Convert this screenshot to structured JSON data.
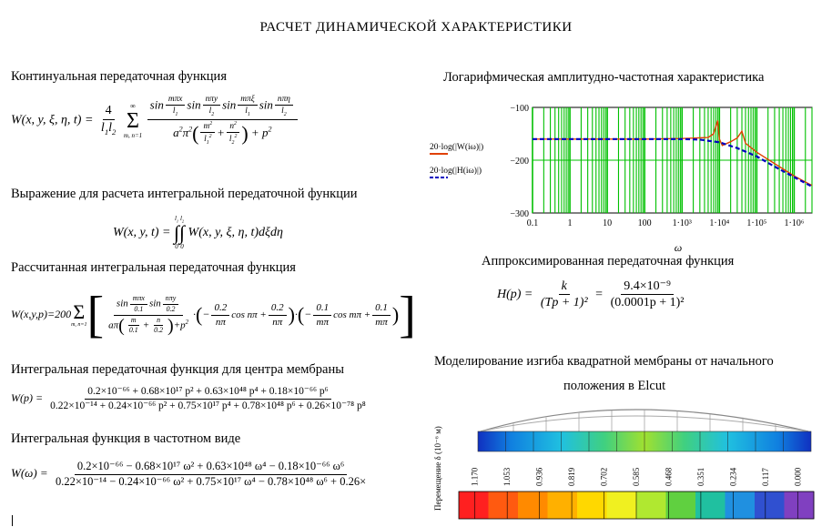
{
  "page": {
    "title": "РАСЧЕТ ДИНАМИЧЕСКОЙ ХАРАКТЕРИСТИКИ"
  },
  "sections": {
    "continual": "Континуальная передаточная функция",
    "integral_expr": "Выражение для расчета интегральной передаточной функции",
    "calculated": "Рассчитанная интегральная передаточная функция",
    "center": "Интегральная передаточная функция для центра мембраны",
    "frequency": "Интегральная функция в частотном виде",
    "lachx": "Логарифмическая амплитудно-частотная характеристика",
    "approx": "Аппроксимированная передаточная функция",
    "elcut_line1": "Моделирование изгиба квадратной мембраны от начального",
    "elcut_line2": "положения в Elcut"
  },
  "formulas": {
    "eq1_lhs": "W(x, y, ξ, η, t) =",
    "eq1_coef_num": "4",
    "eq1_coef_den": "l1l2",
    "eq2_lhs": "W(x, y, t) =",
    "eq2_rhs": "W(x, y, ξ, η, t)dξdη",
    "eq3_lhs": "W(x,y,p)=200",
    "eq3_factor1_num": "0.2",
    "eq3_factor1_den": "nπ",
    "eq3_factor2_num": "0.1",
    "eq3_factor2_den": "mπ",
    "eq4_lhs": "W(p) =",
    "eq4_num": "0.2×10⁻⁶⁶ + 0.68×10¹⁷ p² + 0.63×10⁴⁸ p⁴ + 0.18×10⁻⁶⁶ p⁶",
    "eq4_den": "0.22×10⁻¹⁴ + 0.24×10⁻⁶⁶ p² + 0.75×10¹⁷ p⁴ + 0.78×10⁴⁸ p⁶ + 0.26×10⁻⁷⁸ p⁸",
    "eq5_lhs": "W(ω) =",
    "eq5_num": "0.2×10⁻⁶⁶ − 0.68×10¹⁷ ω² + 0.63×10⁴⁸ ω⁴ − 0.18×10⁻⁶⁶ ω⁶",
    "eq5_den": "0.22×10⁻¹⁴ − 0.24×10⁻⁶⁶ ω² + 0.75×10¹⁷ ω⁴ − 0.78×10⁴⁸ ω⁶ + 0.26×",
    "approx_lhs": "H(p) =",
    "approx_num1": "k",
    "approx_den1": "(Tp + 1)²",
    "approx_num2": "9.4×10⁻⁹",
    "approx_den2": "(0.0001p + 1)²"
  },
  "chart_data": {
    "type": "line",
    "title": "Логарифмическая амплитудно-частотная характеристика",
    "xlabel": "ω",
    "xscale": "log",
    "xlim": [
      0.1,
      3000000
    ],
    "ylim": [
      -300,
      -100
    ],
    "x_ticks": [
      "0.1",
      "1",
      "10",
      "100",
      "1·10³",
      "1·10⁴",
      "1·10⁵",
      "1·10⁶"
    ],
    "y_ticks": [
      "−100",
      "−200",
      "−300"
    ],
    "grid": true,
    "series": [
      {
        "name": "20·log(|W(iω)|)",
        "color": "#e04000",
        "style": "solid",
        "points": [
          [
            0.1,
            -160
          ],
          [
            1,
            -160
          ],
          [
            10,
            -160
          ],
          [
            100,
            -160
          ],
          [
            1000,
            -159
          ],
          [
            5000,
            -157
          ],
          [
            7000,
            -150
          ],
          [
            9000,
            -125
          ],
          [
            10000,
            -160
          ],
          [
            12000,
            -172
          ],
          [
            20000,
            -165
          ],
          [
            30000,
            -158
          ],
          [
            40000,
            -145
          ],
          [
            50000,
            -168
          ],
          [
            100000,
            -185
          ],
          [
            1000000,
            -230
          ],
          [
            3000000,
            -248
          ]
        ]
      },
      {
        "name": "20·log(|H(iω)|)",
        "color": "#0000c0",
        "style": "dashed",
        "points": [
          [
            0.1,
            -160
          ],
          [
            1,
            -160
          ],
          [
            10,
            -160
          ],
          [
            100,
            -160
          ],
          [
            1000,
            -160
          ],
          [
            3000,
            -161
          ],
          [
            10000,
            -166
          ],
          [
            30000,
            -177
          ],
          [
            100000,
            -193
          ],
          [
            300000,
            -212
          ],
          [
            1000000,
            -232
          ],
          [
            3000000,
            -250
          ]
        ]
      }
    ]
  },
  "elcut": {
    "axis_label": "Перемещение δ (10⁻⁶ м)",
    "scale_values": [
      "1.170",
      "1.053",
      "0.936",
      "0.819",
      "0.702",
      "0.585",
      "0.468",
      "0.351",
      "0.234",
      "0.117",
      "0.000"
    ]
  }
}
